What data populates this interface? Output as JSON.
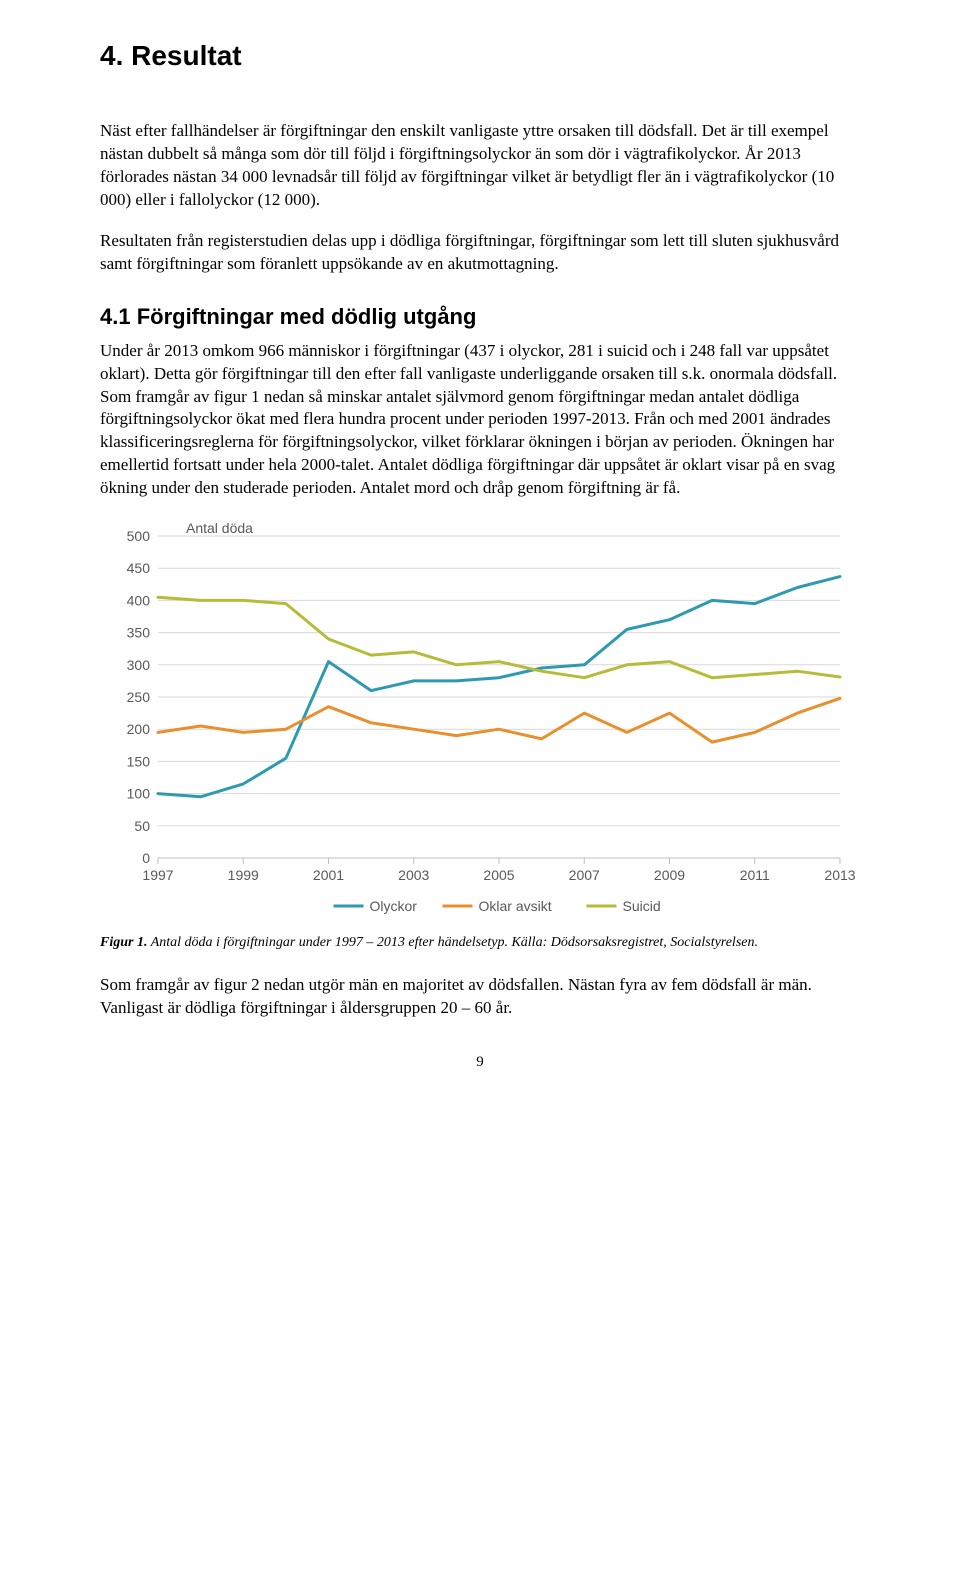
{
  "heading": "4.  Resultat",
  "para1": "Näst efter fallhändelser är förgiftningar den enskilt vanligaste yttre orsaken till dödsfall. Det är till exempel nästan dubbelt så många som dör till följd i förgiftningsolyckor än som dör i vägtrafikolyckor. År 2013 förlorades nästan 34 000 levnadsår till följd av förgiftningar vilket är betydligt fler än i vägtrafikolyckor (10 000) eller i fallolyckor (12 000).",
  "para2": "Resultaten från registerstudien delas upp i dödliga förgiftningar, förgiftningar som lett till sluten sjukhusvård samt förgiftningar som föranlett uppsökande av en akutmottagning.",
  "subheading": "4.1  Förgiftningar med dödlig utgång",
  "para3": "Under år 2013 omkom 966 människor i förgiftningar (437 i olyckor, 281 i suicid och i 248 fall var uppsåtet oklart). Detta gör förgiftningar till den efter fall vanligaste underliggande orsaken till s.k. onormala dödsfall. Som framgår av figur 1 nedan så minskar antalet självmord genom förgiftningar medan antalet dödliga förgiftningsolyckor ökat med flera hundra procent under perioden 1997-2013. Från och med 2001 ändrades klassificeringsreglerna för förgiftningsolyckor, vilket förklarar ökningen i början av perioden. Ökningen har emellertid fortsatt under hela 2000-talet. Antalet dödliga förgiftningar där uppsåtet är oklart visar på en svag ökning under den studerade perioden. Antalet mord och dråp genom förgiftning är få.",
  "figure": {
    "caption_label": "Figur 1.",
    "caption_text": " Antal döda i förgiftningar under 1997 – 2013 efter händelsetyp. Källa: Dödsorsaksregistret, Socialstyrelsen.",
    "y_title": "Antal döda",
    "y_ticks": [
      0,
      50,
      100,
      150,
      200,
      250,
      300,
      350,
      400,
      450,
      500
    ],
    "x_ticks": [
      1997,
      1999,
      2001,
      2003,
      2005,
      2007,
      2009,
      2011,
      2013
    ],
    "x_min": 1997,
    "x_max": 2013,
    "y_min": 0,
    "y_max": 500,
    "grid_color": "#d9d9d9",
    "axis_line_color": "#bfbfbf",
    "background_color": "#ffffff",
    "line_width": 3,
    "series": [
      {
        "name": "Olyckor",
        "color": "#2e9ab2",
        "years": [
          1997,
          1998,
          1999,
          2000,
          2001,
          2002,
          2003,
          2004,
          2005,
          2006,
          2007,
          2008,
          2009,
          2010,
          2011,
          2012,
          2013
        ],
        "values": [
          100,
          95,
          115,
          155,
          305,
          260,
          275,
          275,
          280,
          295,
          300,
          355,
          370,
          400,
          395,
          420,
          437
        ]
      },
      {
        "name": "Oklar avsikt",
        "color": "#e8902e",
        "years": [
          1997,
          1998,
          1999,
          2000,
          2001,
          2002,
          2003,
          2004,
          2005,
          2006,
          2007,
          2008,
          2009,
          2010,
          2011,
          2012,
          2013
        ],
        "values": [
          195,
          205,
          195,
          200,
          235,
          210,
          200,
          190,
          200,
          185,
          225,
          195,
          225,
          180,
          195,
          225,
          248
        ]
      },
      {
        "name": "Suicid",
        "color": "#b6bb3a",
        "years": [
          1997,
          1998,
          1999,
          2000,
          2001,
          2002,
          2003,
          2004,
          2005,
          2006,
          2007,
          2008,
          2009,
          2010,
          2011,
          2012,
          2013
        ],
        "values": [
          405,
          400,
          400,
          395,
          340,
          315,
          320,
          300,
          305,
          290,
          280,
          300,
          305,
          280,
          285,
          290,
          281
        ]
      }
    ]
  },
  "para4": "Som framgår av figur 2 nedan utgör män en majoritet av dödsfallen. Nästan fyra av fem dödsfall är män. Vanligast är dödliga förgiftningar i åldersgruppen 20 – 60 år.",
  "page_number": "9"
}
